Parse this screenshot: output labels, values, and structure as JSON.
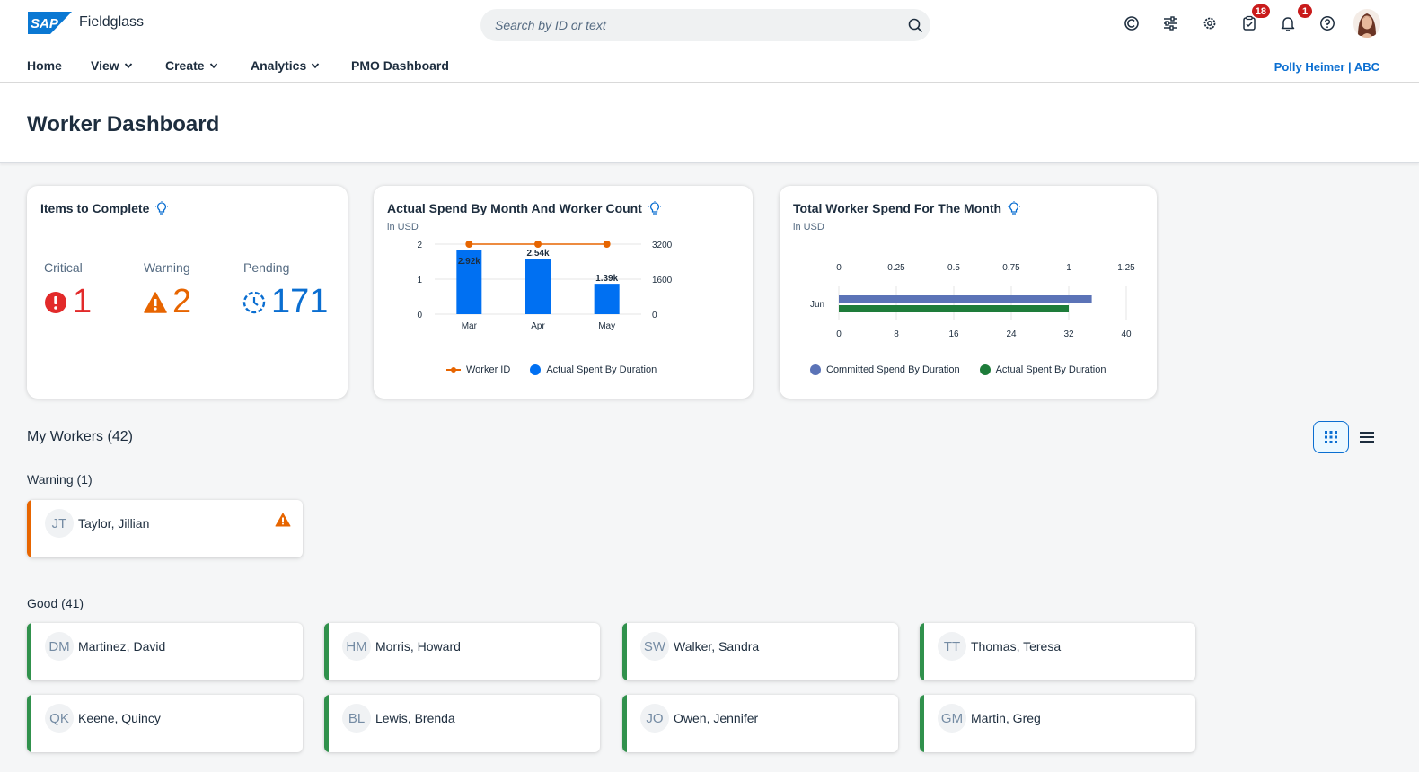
{
  "shell": {
    "logo_text": "SAP",
    "product": "Fieldglass",
    "search_placeholder": "Search by ID or text",
    "badges": {
      "tasks": "18",
      "notifications": "1"
    }
  },
  "nav": {
    "items": [
      "Home",
      "View",
      "Create",
      "Analytics",
      "PMO Dashboard"
    ],
    "user": "Polly Heimer | ABC"
  },
  "page": {
    "title": "Worker Dashboard"
  },
  "items_card": {
    "title": "Items to Complete",
    "kpis": [
      {
        "label": "Critical",
        "value": "1",
        "color": "#e22a2a"
      },
      {
        "label": "Warning",
        "value": "2",
        "color": "#e76500"
      },
      {
        "label": "Pending",
        "value": "171",
        "color": "#0a6ed1"
      }
    ]
  },
  "spend_card": {
    "title": "Actual Spend By Month And Worker Count",
    "unit": "in USD",
    "legend": [
      "Worker ID",
      "Actual Spent By Duration"
    ]
  },
  "total_card": {
    "title": "Total Worker Spend For The Month",
    "unit": "in USD",
    "legend": [
      "Committed Spend By Duration",
      "Actual Spent By Duration"
    ]
  },
  "chart_data": [
    {
      "type": "bar",
      "title": "Actual Spend By Month And Worker Count",
      "subtitle": "in USD",
      "categories": [
        "Mar",
        "Apr",
        "May"
      ],
      "series": [
        {
          "name": "Actual Spent By Duration",
          "values": [
            2920,
            2540,
            1390
          ],
          "labels": [
            "2.92k",
            "2.54k",
            "1.39k"
          ],
          "axis": "right",
          "color": "#0070f2"
        },
        {
          "name": "Worker ID",
          "values": [
            2,
            2,
            2
          ],
          "axis": "left",
          "kind": "line",
          "color": "#e76500"
        }
      ],
      "y_left": {
        "ticks": [
          "0",
          "1",
          "2"
        ],
        "range": [
          0,
          2
        ]
      },
      "y_right": {
        "ticks": [
          "0",
          "1600",
          "3200"
        ],
        "range": [
          0,
          3200
        ]
      }
    },
    {
      "type": "bar",
      "orientation": "horizontal",
      "title": "Total Worker Spend For The Month",
      "subtitle": "in USD",
      "categories": [
        "Jun"
      ],
      "series": [
        {
          "name": "Committed Spend By Duration",
          "values": [
            1.1
          ],
          "axis": "top",
          "color": "#5b73b7"
        },
        {
          "name": "Actual Spent By Duration",
          "values": [
            32
          ],
          "axis": "bottom",
          "color": "#1e7c3a"
        }
      ],
      "x_top": {
        "ticks": [
          "0",
          "0.25",
          "0.5",
          "0.75",
          "1",
          "1.25"
        ],
        "range": [
          0,
          1.25
        ]
      },
      "x_bottom": {
        "ticks": [
          "0",
          "8",
          "16",
          "24",
          "32",
          "40"
        ],
        "range": [
          0,
          40
        ]
      }
    }
  ],
  "workers": {
    "title": "My Workers (42)",
    "groups": [
      {
        "label": "Warning (1)",
        "items": [
          {
            "initials": "JT",
            "name": "Taylor, Jillian"
          }
        ]
      },
      {
        "label": "Good (41)",
        "items": [
          {
            "initials": "DM",
            "name": "Martinez, David"
          },
          {
            "initials": "HM",
            "name": "Morris, Howard"
          },
          {
            "initials": "SW",
            "name": "Walker, Sandra"
          },
          {
            "initials": "TT",
            "name": "Thomas, Teresa"
          },
          {
            "initials": "QK",
            "name": "Keene, Quincy"
          },
          {
            "initials": "BL",
            "name": "Lewis, Brenda"
          },
          {
            "initials": "JO",
            "name": "Owen, Jennifer"
          },
          {
            "initials": "GM",
            "name": "Martin, Greg"
          }
        ]
      }
    ],
    "colors": {
      "warning": "#e76500",
      "good": "#30914c"
    }
  }
}
